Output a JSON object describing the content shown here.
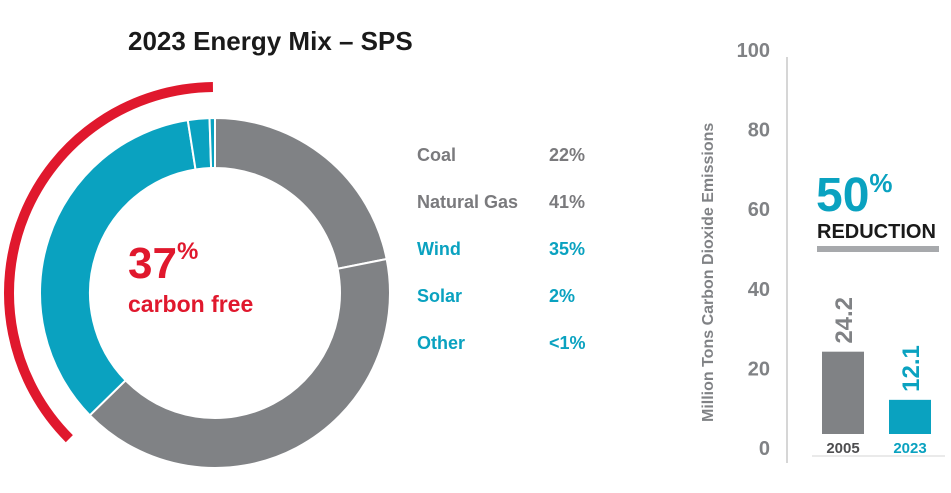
{
  "chart_data": [
    {
      "type": "pie",
      "title": "2023 Energy Mix – SPS",
      "center_value": "37",
      "center_unit": "%",
      "center_label": "carbon free",
      "slices": [
        {
          "label": "Coal",
          "value": 22,
          "display": "22%",
          "color": "#808285",
          "text_color": "#7a7a7d"
        },
        {
          "label": "Natural Gas",
          "value": 41,
          "display": "41%",
          "color": "#808285",
          "text_color": "#7a7a7d"
        },
        {
          "label": "Wind",
          "value": 35,
          "display": "35%",
          "color": "#0aa2c0",
          "text_color": "#0aa2c0"
        },
        {
          "label": "Solar",
          "value": 2,
          "display": "2%",
          "color": "#0aa2c0",
          "text_color": "#0aa2c0"
        },
        {
          "label": "Other",
          "value": 0.5,
          "display": "<1%",
          "color": "#0aa2c0",
          "text_color": "#0aa2c0"
        }
      ],
      "carbon_free_arc_color": "#e0182d"
    },
    {
      "type": "bar",
      "categories": [
        "2005",
        "2023"
      ],
      "values": [
        24.2,
        12.1
      ],
      "value_labels": [
        "24.2",
        "12.1"
      ],
      "colors": [
        "#808285",
        "#0aa2c0"
      ],
      "ylabel": "Million Tons Carbon Dioxide Emissions",
      "ylim": [
        0,
        100
      ],
      "yticks": [
        "0",
        "20",
        "40",
        "60",
        "80",
        "100"
      ],
      "annotation_value": "50",
      "annotation_unit": "%",
      "annotation_label": "REDUCTION"
    }
  ]
}
